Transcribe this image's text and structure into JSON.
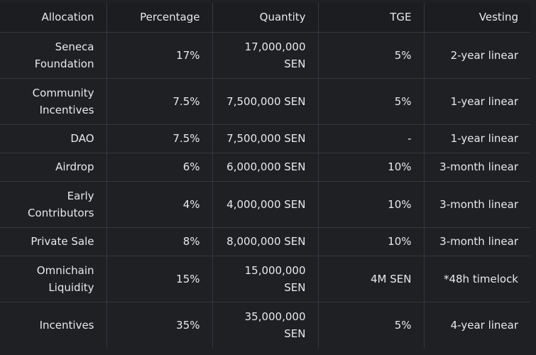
{
  "headers": [
    "Allocation",
    "Percentage",
    "Quantity",
    "TGE",
    "Vesting"
  ],
  "rows": [
    {
      "allocation": "Seneca Foundation",
      "percentage": "17%",
      "quantity": "17,000,000 SEN",
      "tge": "5%",
      "vesting": "2-year linear"
    },
    {
      "allocation": "Community Incentives",
      "percentage": "7.5%",
      "quantity": "7,500,000 SEN",
      "tge": "5%",
      "vesting": "1-year linear"
    },
    {
      "allocation": "DAO",
      "percentage": "7.5%",
      "quantity": "7,500,000 SEN",
      "tge": "-",
      "vesting": "1-year linear"
    },
    {
      "allocation": "Airdrop",
      "percentage": "6%",
      "quantity": "6,000,000 SEN",
      "tge": "10%",
      "vesting": "3-month linear"
    },
    {
      "allocation": "Early Contributors",
      "percentage": "4%",
      "quantity": "4,000,000 SEN",
      "tge": "10%",
      "vesting": "3-month linear"
    },
    {
      "allocation": "Private Sale",
      "percentage": "8%",
      "quantity": "8,000,000 SEN",
      "tge": "10%",
      "vesting": "3-month linear"
    },
    {
      "allocation": "Omnichain Liquidity",
      "percentage": "15%",
      "quantity": "15,000,000 SEN",
      "tge": "4M SEN",
      "vesting": "*48h timelock"
    },
    {
      "allocation": "Incentives",
      "percentage": "35%",
      "quantity": "35,000,000 SEN",
      "tge": "5%",
      "vesting": "4-year linear"
    }
  ]
}
